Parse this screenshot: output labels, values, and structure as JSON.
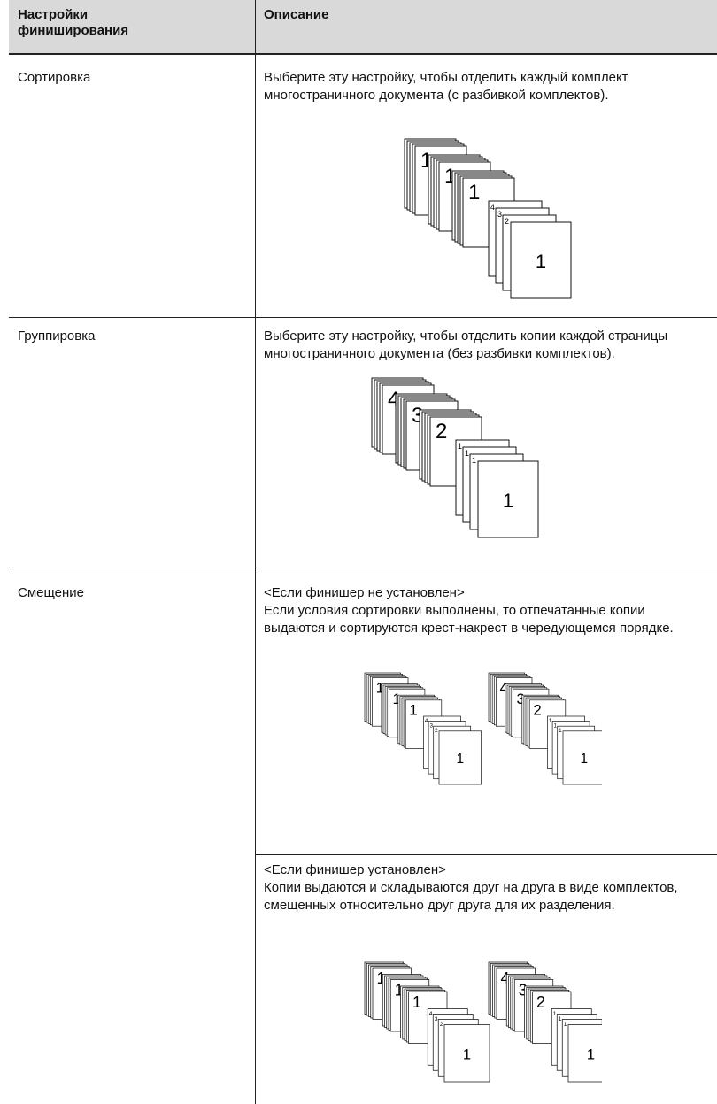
{
  "header": {
    "setting": "Настройки финиширования",
    "description": "Описание"
  },
  "rows": [
    {
      "setting": "Сортировка",
      "description": "Выберите эту настройку, чтобы отделить каждый комплект многостраничного документа (с разбивкой комплектов).",
      "figure": [
        [
          "1",
          "1",
          "1",
          "4",
          "3",
          "2",
          "1"
        ]
      ]
    },
    {
      "setting": "Группировка",
      "description": "Выберите эту настройку, чтобы отделить копии каждой страницы многостраничного документа (без разбивки комплектов).",
      "figure": [
        [
          "4",
          "3",
          "2",
          "1",
          "1",
          "1",
          "1"
        ]
      ]
    },
    {
      "setting": "Смещение",
      "cases": [
        {
          "condition": "<Если финишер не установлен>",
          "description": "Если условия сортировки выполнены, то отпечатанные копии выдаются и сортируются крест-накрест в чередующемся порядке.",
          "figure": [
            [
              "1",
              "1",
              "1",
              "4",
              "3",
              "2",
              "1"
            ],
            [
              "4",
              "3",
              "2",
              "1",
              "1",
              "1",
              "1"
            ]
          ]
        },
        {
          "condition": "<Если финишер установлен>",
          "description": "Копии выдаются и складываются друг на друга в виде комплектов, смещенных относительно друг друга для их разделения.",
          "figure": [
            [
              "1",
              "1",
              "1",
              "4",
              "3",
              "2",
              "1"
            ],
            [
              "4",
              "3",
              "2",
              "1",
              "1",
              "1",
              "1"
            ]
          ]
        }
      ]
    }
  ]
}
